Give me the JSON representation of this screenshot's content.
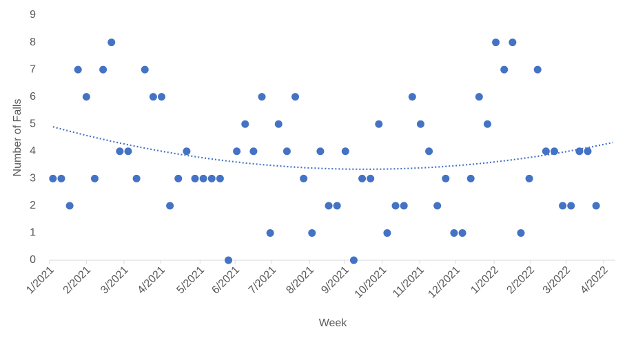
{
  "chart_data": {
    "type": "scatter",
    "x_label": "Week",
    "y_label": "Number of Falls",
    "x": [
      1,
      2,
      3,
      4,
      5,
      6,
      7,
      8,
      9,
      10,
      11,
      12,
      13,
      14,
      15,
      16,
      17,
      18,
      19,
      20,
      21,
      22,
      23,
      24,
      25,
      26,
      27,
      28,
      29,
      30,
      31,
      32,
      33,
      34,
      35,
      36,
      37,
      38,
      39,
      40,
      41,
      42,
      43,
      44,
      45,
      46,
      47,
      48,
      49,
      50,
      51,
      52,
      53,
      54,
      55,
      56,
      57,
      58,
      59,
      60,
      61,
      62,
      63,
      64,
      65,
      66
    ],
    "series": [
      {
        "name": "Number of Falls",
        "color": "#4472c4",
        "values": [
          3,
          3,
          2,
          7,
          6,
          3,
          7,
          8,
          4,
          4,
          3,
          7,
          6,
          6,
          2,
          3,
          4,
          3,
          3,
          3,
          3,
          0,
          4,
          5,
          4,
          6,
          1,
          5,
          4,
          6,
          3,
          1,
          4,
          2,
          2,
          4,
          0,
          3,
          3,
          5,
          1,
          2,
          2,
          6,
          5,
          4,
          2,
          3,
          1,
          1,
          3,
          6,
          5,
          8,
          7,
          8,
          1,
          3,
          7,
          4,
          4,
          2,
          2,
          4,
          4,
          2
        ]
      }
    ],
    "trendline": {
      "order": 2,
      "color": "#4472c4"
    },
    "xlim": [
      0.6,
      68.3
    ],
    "xticks": [
      {
        "value": 0.6,
        "label": "1/2021"
      },
      {
        "value": 5.0,
        "label": "2/2021"
      },
      {
        "value": 9.5,
        "label": "3/2021"
      },
      {
        "value": 13.9,
        "label": "4/2021"
      },
      {
        "value": 18.6,
        "label": "5/2021"
      },
      {
        "value": 22.8,
        "label": "6/2021"
      },
      {
        "value": 27.2,
        "label": "7/2021"
      },
      {
        "value": 31.7,
        "label": "8/2021"
      },
      {
        "value": 35.9,
        "label": "9/2021"
      },
      {
        "value": 40.4,
        "label": "10/2021"
      },
      {
        "value": 44.9,
        "label": "11/2021"
      },
      {
        "value": 49.2,
        "label": "12/2021"
      },
      {
        "value": 53.8,
        "label": "1/2022"
      },
      {
        "value": 58.1,
        "label": "2/2022"
      },
      {
        "value": 62.4,
        "label": "3/2022"
      },
      {
        "value": 66.9,
        "label": "4/2022"
      }
    ],
    "ylim": [
      0,
      9
    ],
    "yticks": [
      0,
      1,
      2,
      3,
      4,
      5,
      6,
      7,
      8,
      9
    ],
    "grid": false
  }
}
